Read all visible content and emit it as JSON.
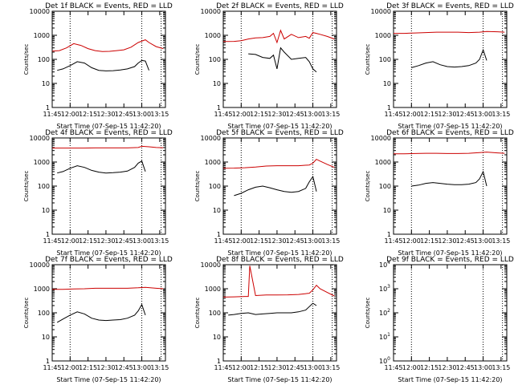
{
  "chart_data": [
    {
      "type": "line",
      "title": "Det 1f BLACK = Events, RED = LLD",
      "xlabel": "Start Time (07-Sep-15 11:42:20)",
      "ylabel": "Counts/sec",
      "xlim": [
        11.75,
        13.33
      ],
      "ylim_log": [
        1,
        10000
      ],
      "ytick_style": "decimal",
      "xticks": [
        "11:45",
        "12:00",
        "12:15",
        "12:30",
        "12:45",
        "13:00",
        "13:15"
      ],
      "vlines": [
        12.0,
        13.0,
        13.27
      ],
      "series": [
        {
          "color": "#000000",
          "x": [
            11.82,
            11.9,
            12.0,
            12.1,
            12.2,
            12.3,
            12.4,
            12.5,
            12.6,
            12.7,
            12.8,
            12.9,
            12.95,
            13.0,
            13.05,
            13.1
          ],
          "y": [
            35,
            40,
            55,
            80,
            70,
            45,
            35,
            33,
            34,
            36,
            40,
            50,
            70,
            90,
            85,
            35
          ]
        },
        {
          "color": "#cc0000",
          "x": [
            11.75,
            11.85,
            11.95,
            12.05,
            12.15,
            12.25,
            12.35,
            12.45,
            12.55,
            12.65,
            12.75,
            12.85,
            12.95,
            13.05,
            13.1,
            13.2,
            13.3
          ],
          "y": [
            220,
            230,
            300,
            450,
            380,
            280,
            230,
            210,
            215,
            230,
            250,
            320,
            500,
            650,
            500,
            340,
            280
          ]
        }
      ]
    },
    {
      "type": "line",
      "title": "Det 2f BLACK = Events, RED = LLD",
      "xlabel": "Start Time (07-Sep-15 11:42:20)",
      "ylabel": "Counts/sec",
      "xlim": [
        11.75,
        13.33
      ],
      "ylim_log": [
        1,
        10000
      ],
      "ytick_style": "decimal",
      "xticks": [
        "11:45",
        "12:00",
        "12:15",
        "12:30",
        "12:45",
        "13:00",
        "13:15"
      ],
      "vlines": [
        12.0,
        13.0,
        13.27
      ],
      "series": [
        {
          "color": "#000000",
          "x": [
            12.1,
            12.2,
            12.3,
            12.4,
            12.45,
            12.5,
            12.55,
            12.6,
            12.7,
            12.8,
            12.9,
            12.95,
            13.0,
            13.05
          ],
          "y": [
            170,
            160,
            120,
            110,
            150,
            40,
            300,
            200,
            100,
            110,
            120,
            80,
            40,
            30
          ]
        },
        {
          "color": "#cc0000",
          "x": [
            11.75,
            11.9,
            12.0,
            12.1,
            12.2,
            12.3,
            12.4,
            12.45,
            12.5,
            12.55,
            12.6,
            12.7,
            12.8,
            12.9,
            12.95,
            13.0,
            13.05,
            13.1,
            13.2,
            13.3
          ],
          "y": [
            550,
            560,
            600,
            700,
            780,
            800,
            900,
            1200,
            500,
            1600,
            700,
            1100,
            800,
            900,
            750,
            1300,
            1200,
            1100,
            900,
            700
          ]
        }
      ]
    },
    {
      "type": "line",
      "title": "Det 3f BLACK = Events, RED = LLD",
      "xlabel": "Start Time (07-Sep-15 11:42:20)",
      "ylabel": "Counts/sec",
      "xlim": [
        11.75,
        13.33
      ],
      "ylim_log": [
        1,
        10000
      ],
      "ytick_style": "decimal",
      "xticks": [
        "11:45",
        "12:00",
        "12:15",
        "12:30",
        "12:45",
        "13:00",
        "13:15"
      ],
      "vlines": [
        12.0,
        13.0,
        13.27
      ],
      "series": [
        {
          "color": "#000000",
          "x": [
            12.0,
            12.1,
            12.2,
            12.3,
            12.4,
            12.5,
            12.6,
            12.7,
            12.8,
            12.9,
            12.95,
            13.0,
            13.05
          ],
          "y": [
            45,
            55,
            70,
            80,
            60,
            50,
            48,
            50,
            55,
            70,
            100,
            250,
            90
          ]
        },
        {
          "color": "#cc0000",
          "x": [
            11.75,
            11.9,
            12.05,
            12.2,
            12.35,
            12.5,
            12.65,
            12.8,
            12.95,
            13.05,
            13.2,
            13.3
          ],
          "y": [
            1200,
            1200,
            1250,
            1300,
            1350,
            1350,
            1350,
            1300,
            1350,
            1450,
            1400,
            1350
          ]
        }
      ]
    },
    {
      "type": "line",
      "title": "Det 4f BLACK = Events, RED = LLD",
      "xlabel": "Start Time (07-Sep-15 11:42:20)",
      "ylabel": "Counts/sec",
      "xlim": [
        11.75,
        13.33
      ],
      "ylim_log": [
        1,
        10000
      ],
      "ytick_style": "decimal",
      "xticks": [
        "11:45",
        "12:00",
        "12:15",
        "12:30",
        "12:45",
        "13:00",
        "13:15"
      ],
      "vlines": [
        12.0,
        13.0,
        13.27
      ],
      "series": [
        {
          "color": "#000000",
          "x": [
            11.82,
            11.9,
            12.0,
            12.1,
            12.2,
            12.3,
            12.4,
            12.5,
            12.6,
            12.7,
            12.8,
            12.9,
            12.95,
            13.0,
            13.05
          ],
          "y": [
            350,
            400,
            550,
            700,
            600,
            450,
            380,
            350,
            360,
            380,
            420,
            600,
            900,
            1100,
            400
          ]
        },
        {
          "color": "#cc0000",
          "x": [
            11.75,
            11.9,
            12.05,
            12.2,
            12.35,
            12.5,
            12.65,
            12.8,
            12.95,
            13.0,
            13.1,
            13.2,
            13.3
          ],
          "y": [
            3800,
            3800,
            3800,
            3800,
            3850,
            3850,
            3850,
            3850,
            4000,
            4500,
            4300,
            4000,
            3900
          ]
        }
      ]
    },
    {
      "type": "line",
      "title": "Det 5f BLACK = Events, RED = LLD",
      "xlabel": "Start Time (07-Sep-15 11:42:20)",
      "ylabel": "Counts/sec",
      "xlim": [
        11.75,
        13.33
      ],
      "ylim_log": [
        1,
        10000
      ],
      "ytick_style": "decimal",
      "xticks": [
        "11:45",
        "12:00",
        "12:15",
        "12:30",
        "12:45",
        "13:00",
        "13:15"
      ],
      "vlines": [
        12.0,
        13.0,
        13.27
      ],
      "series": [
        {
          "color": "#000000",
          "x": [
            11.9,
            12.0,
            12.1,
            12.2,
            12.3,
            12.4,
            12.5,
            12.6,
            12.7,
            12.8,
            12.9,
            12.95,
            13.0,
            13.05
          ],
          "y": [
            40,
            50,
            70,
            90,
            100,
            85,
            70,
            60,
            55,
            60,
            80,
            150,
            250,
            60
          ]
        },
        {
          "color": "#cc0000",
          "x": [
            11.75,
            11.9,
            12.05,
            12.2,
            12.35,
            12.5,
            12.65,
            12.8,
            12.95,
            13.0,
            13.05,
            13.1,
            13.2,
            13.3
          ],
          "y": [
            550,
            560,
            580,
            620,
            680,
            700,
            700,
            700,
            750,
            900,
            1300,
            1100,
            800,
            600
          ]
        }
      ]
    },
    {
      "type": "line",
      "title": "Det 6f BLACK = Events, RED = LLD",
      "xlabel": "Start Time (07-Sep-15 11:42:20)",
      "ylabel": "Counts/sec",
      "xlim": [
        11.75,
        13.33
      ],
      "ylim_log": [
        1,
        10000
      ],
      "ytick_style": "decimal",
      "xticks": [
        "11:45",
        "12:00",
        "12:15",
        "12:30",
        "12:45",
        "13:00",
        "13:15"
      ],
      "vlines": [
        12.0,
        13.0,
        13.27
      ],
      "series": [
        {
          "color": "#000000",
          "x": [
            12.0,
            12.1,
            12.2,
            12.3,
            12.4,
            12.5,
            12.6,
            12.7,
            12.8,
            12.9,
            12.95,
            13.0,
            13.05
          ],
          "y": [
            100,
            110,
            130,
            140,
            130,
            120,
            115,
            115,
            120,
            140,
            200,
            400,
            100
          ]
        },
        {
          "color": "#cc0000",
          "x": [
            11.75,
            11.9,
            12.05,
            12.2,
            12.35,
            12.5,
            12.65,
            12.8,
            12.95,
            13.05,
            13.2,
            13.3
          ],
          "y": [
            2200,
            2200,
            2250,
            2300,
            2300,
            2250,
            2250,
            2300,
            2450,
            2600,
            2400,
            2300
          ]
        }
      ]
    },
    {
      "type": "line",
      "title": "Det 7f BLACK = Events, RED = LLD",
      "xlabel": "Start Time (07-Sep-15 11:42:20)",
      "ylabel": "Counts/sec",
      "xlim": [
        11.75,
        13.33
      ],
      "ylim_log": [
        1,
        10000
      ],
      "ytick_style": "decimal",
      "xticks": [
        "11:45",
        "12:00",
        "12:15",
        "12:30",
        "12:45",
        "13:00",
        "13:15"
      ],
      "vlines": [
        12.0,
        13.0,
        13.27
      ],
      "series": [
        {
          "color": "#000000",
          "x": [
            11.82,
            11.9,
            12.0,
            12.1,
            12.2,
            12.3,
            12.4,
            12.5,
            12.6,
            12.7,
            12.8,
            12.9,
            12.95,
            13.0,
            13.05
          ],
          "y": [
            40,
            55,
            80,
            110,
            90,
            60,
            50,
            48,
            50,
            52,
            60,
            80,
            120,
            220,
            80
          ]
        },
        {
          "color": "#cc0000",
          "x": [
            11.75,
            11.9,
            12.05,
            12.2,
            12.35,
            12.5,
            12.65,
            12.8,
            12.95,
            13.05,
            13.2,
            13.3
          ],
          "y": [
            950,
            950,
            980,
            1000,
            1050,
            1050,
            1050,
            1050,
            1100,
            1150,
            1050,
            1000
          ]
        }
      ]
    },
    {
      "type": "line",
      "title": "Det 8f BLACK = Events, RED = LLD",
      "xlabel": "Start Time (07-Sep-15 11:42:20)",
      "ylabel": "Counts/sec",
      "xlim": [
        11.75,
        13.33
      ],
      "ylim_log": [
        1,
        10000
      ],
      "ytick_style": "decimal",
      "xticks": [
        "11:45",
        "12:00",
        "12:15",
        "12:30",
        "12:45",
        "13:00",
        "13:15"
      ],
      "vlines": [
        12.0,
        13.0,
        13.27
      ],
      "series": [
        {
          "color": "#000000",
          "x": [
            11.82,
            11.9,
            12.0,
            12.1,
            12.2,
            12.3,
            12.4,
            12.5,
            12.6,
            12.7,
            12.8,
            12.9,
            12.95,
            13.0,
            13.05
          ],
          "y": [
            80,
            85,
            95,
            100,
            85,
            90,
            95,
            100,
            100,
            100,
            110,
            130,
            180,
            250,
            200
          ]
        },
        {
          "color": "#cc0000",
          "x": [
            11.75,
            11.9,
            12.05,
            12.1,
            12.12,
            12.2,
            12.35,
            12.5,
            12.65,
            12.8,
            12.95,
            13.0,
            13.05,
            13.1,
            13.2,
            13.3
          ],
          "y": [
            450,
            460,
            480,
            480,
            9000,
            520,
            550,
            550,
            560,
            580,
            650,
            900,
            1400,
            1000,
            700,
            500
          ]
        }
      ]
    },
    {
      "type": "line",
      "title": "Det 9f BLACK = Events, RED = LLD",
      "xlabel": "Start Time (07-Sep-15 11:42:20)",
      "ylabel": "Counts/sec",
      "xlim": [
        11.75,
        13.33
      ],
      "ylim_log": [
        1,
        10000
      ],
      "ytick_style": "exponent",
      "xticks": [
        "11:45",
        "12:00",
        "12:15",
        "12:30",
        "12:45",
        "13:00",
        "13:15"
      ],
      "vlines": [
        12.0,
        13.0,
        13.27
      ],
      "series": []
    }
  ]
}
